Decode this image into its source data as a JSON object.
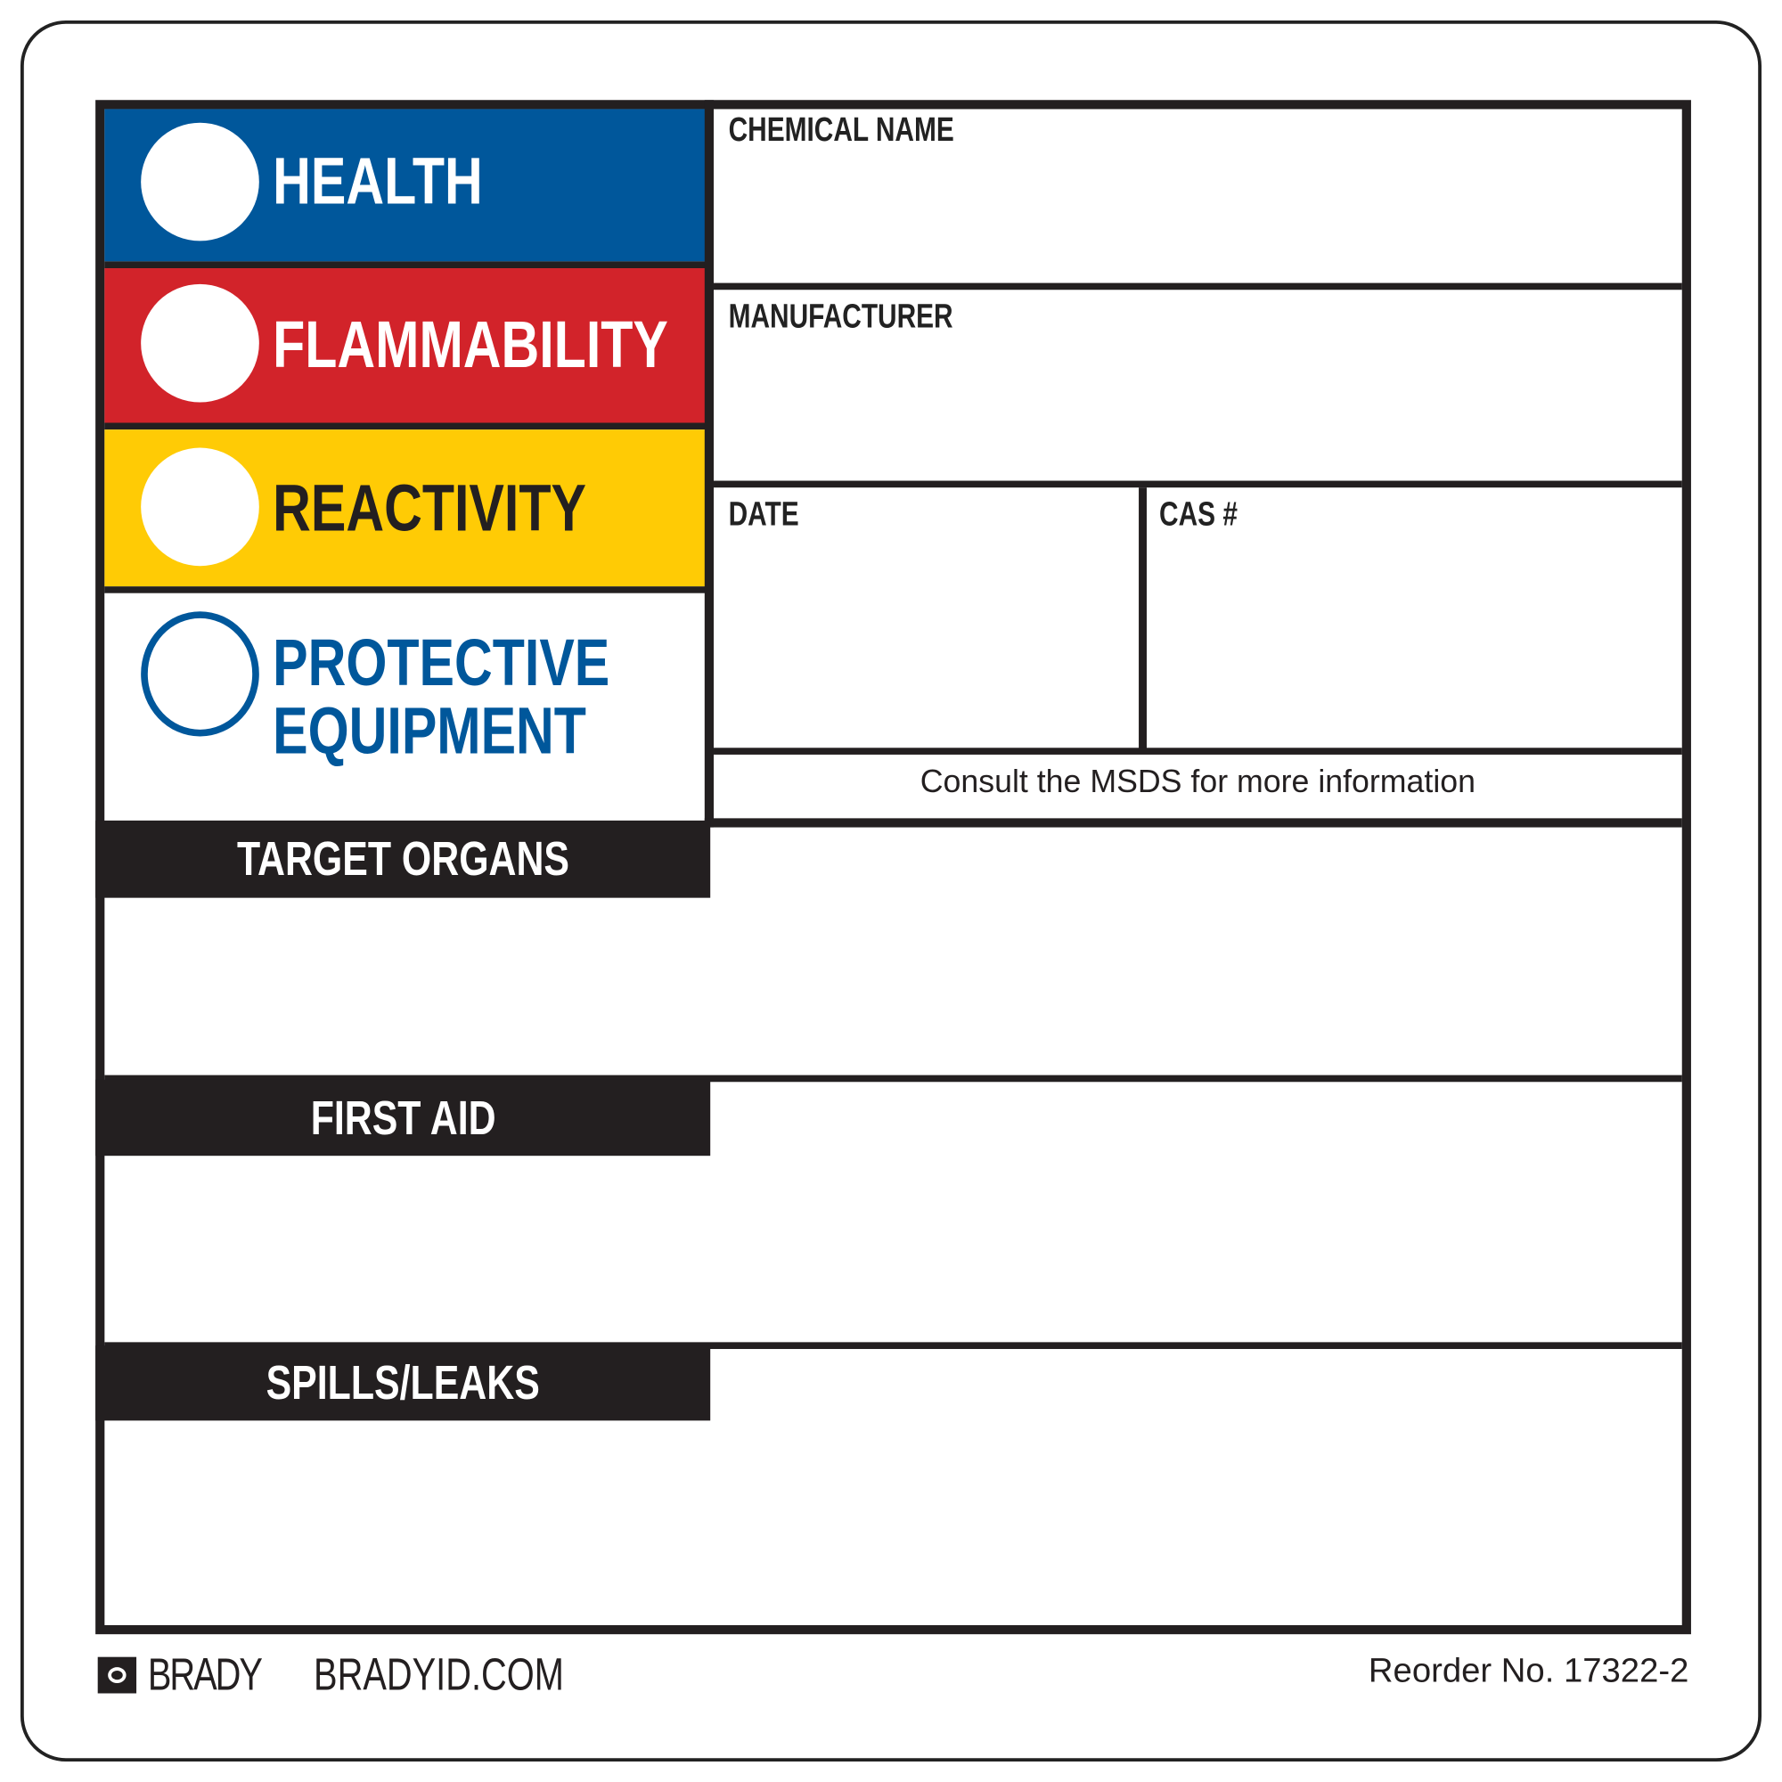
{
  "hmis": {
    "health": {
      "label": "HEALTH",
      "color": "#00579b"
    },
    "flammability": {
      "label": "FLAMMABILITY",
      "color": "#d2232a"
    },
    "reactivity": {
      "label": "REACTIVITY",
      "color": "#ffcb05"
    },
    "protective": {
      "line1": "PROTECTIVE",
      "line2": "EQUIPMENT",
      "color": "#00579b"
    }
  },
  "fields": {
    "chemical_name": "CHEMICAL NAME",
    "manufacturer": "MANUFACTURER",
    "date": "DATE",
    "cas": "CAS #",
    "consult": "Consult the MSDS for more information"
  },
  "sections": {
    "target_organs": "TARGET ORGANS",
    "first_aid": "FIRST AID",
    "spills": "SPILLS/LEAKS"
  },
  "footer": {
    "brand": "BRADY",
    "website": "BRADYID.COM",
    "reorder": "Reorder No. 17322-2"
  }
}
